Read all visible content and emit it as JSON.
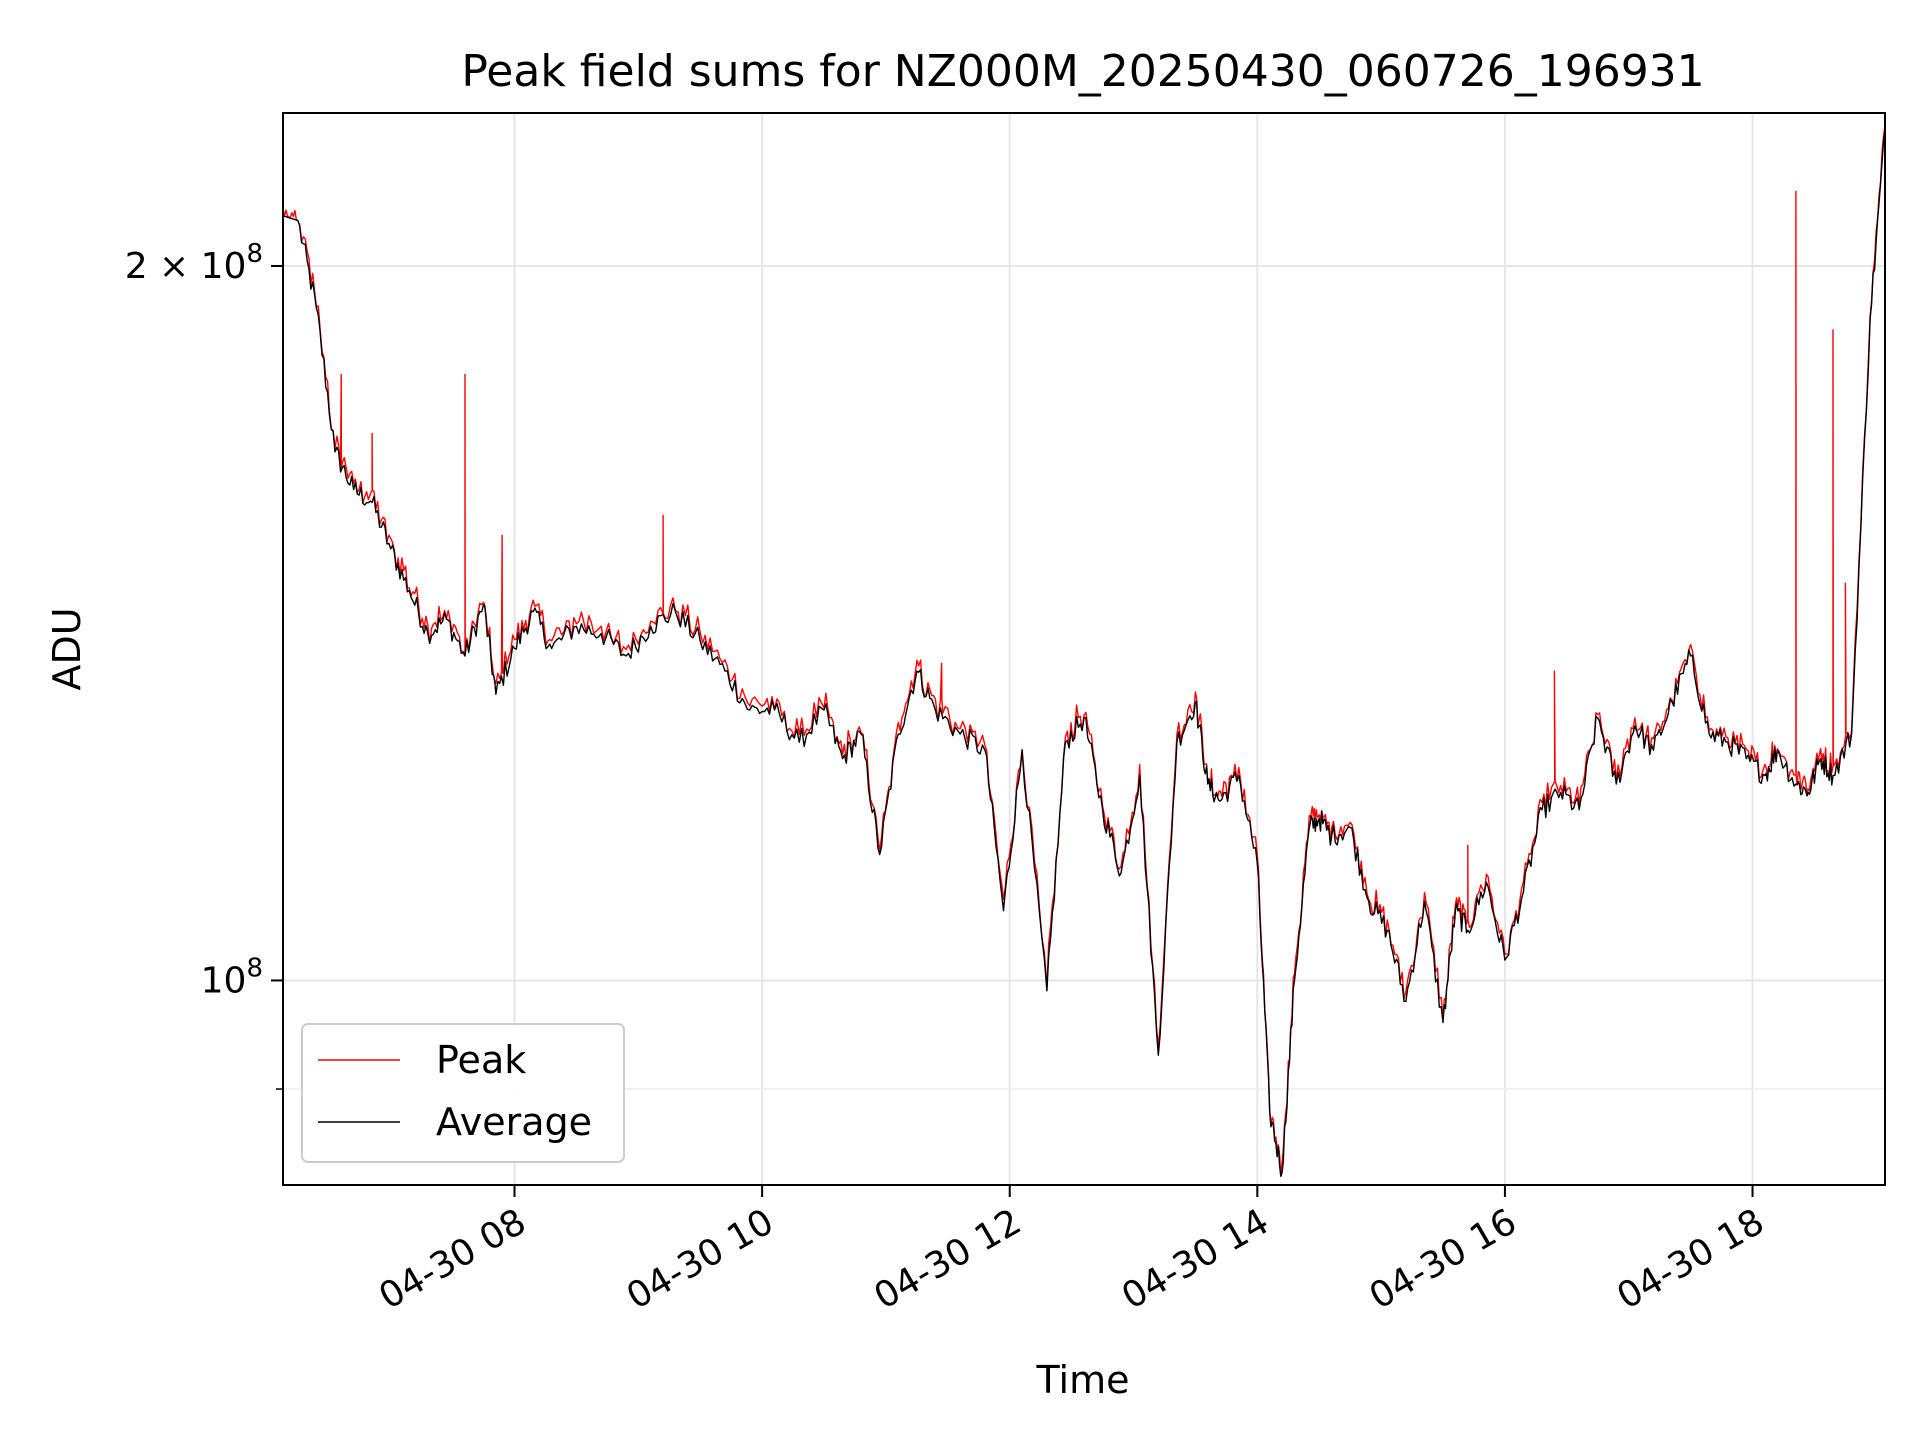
{
  "chart_data": {
    "type": "line",
    "title": "Peak field sums for NZ000M_20250430_060726_196931",
    "xlabel": "Time",
    "ylabel": "ADU",
    "yscale": "log",
    "x_unit": "hours (2025-04-30)",
    "xlim": [
      6.13,
      19.07
    ],
    "ylim": [
      82000000,
      232000000
    ],
    "x_ticks": [
      {
        "value": 8,
        "label": "04-30 08"
      },
      {
        "value": 10,
        "label": "04-30 10"
      },
      {
        "value": 12,
        "label": "04-30 12"
      },
      {
        "value": 14,
        "label": "04-30 14"
      },
      {
        "value": 16,
        "label": "04-30 16"
      },
      {
        "value": 18,
        "label": "04-30 18"
      }
    ],
    "y_ticks": [
      {
        "value": 100000000,
        "label_base": "10",
        "label_exp": "8"
      },
      {
        "value": 200000000,
        "label_base": "2 × 10",
        "label_exp": "8"
      }
    ],
    "y_minor_ticks": [
      90000000
    ],
    "grid": true,
    "legend_position": "lower-left",
    "series": [
      {
        "name": "Average",
        "color": "#000000",
        "x": [
          6.13,
          6.25,
          6.4,
          6.55,
          6.7,
          6.85,
          7.0,
          7.15,
          7.3,
          7.45,
          7.6,
          7.75,
          7.85,
          8.0,
          8.15,
          8.3,
          8.5,
          8.7,
          8.9,
          9.1,
          9.3,
          9.5,
          9.7,
          9.9,
          10.1,
          10.3,
          10.5,
          10.65,
          10.8,
          10.95,
          11.1,
          11.25,
          11.4,
          11.6,
          11.8,
          11.95,
          12.1,
          12.3,
          12.45,
          12.6,
          12.75,
          12.9,
          13.05,
          13.2,
          13.35,
          13.5,
          13.6,
          13.7,
          13.85,
          14.0,
          14.1,
          14.2,
          14.3,
          14.42,
          14.5,
          14.6,
          14.75,
          14.9,
          15.05,
          15.2,
          15.35,
          15.5,
          15.6,
          15.7,
          15.85,
          16.0,
          16.15,
          16.3,
          16.45,
          16.6,
          16.75,
          16.9,
          17.05,
          17.2,
          17.35,
          17.5,
          17.65,
          17.8,
          17.95,
          18.1,
          18.2,
          18.35,
          18.45,
          18.55,
          18.65,
          18.8,
          18.95,
          19.07
        ],
        "y": [
          210000000,
          209000000,
          192000000,
          167000000,
          161000000,
          159000000,
          152000000,
          146000000,
          140000000,
          142000000,
          137000000,
          144000000,
          132000000,
          138000000,
          143000000,
          138000000,
          141000000,
          140000000,
          137000000,
          141000000,
          143000000,
          139000000,
          135000000,
          130000000,
          130000000,
          126000000,
          130000000,
          124000000,
          127000000,
          113000000,
          127000000,
          135000000,
          130000000,
          127000000,
          125000000,
          107000000,
          125000000,
          99000000,
          126000000,
          129000000,
          118000000,
          111000000,
          122000000,
          93000000,
          126000000,
          131000000,
          121000000,
          119000000,
          122000000,
          112000000,
          88000000,
          83000000,
          100000000,
          116000000,
          117000000,
          115000000,
          116000000,
          108000000,
          105000000,
          98000000,
          108000000,
          96000000,
          107000000,
          105000000,
          110000000,
          102000000,
          109000000,
          118000000,
          120000000,
          118000000,
          129000000,
          121000000,
          128000000,
          125000000,
          131000000,
          137000000,
          127000000,
          126000000,
          124000000,
          122000000,
          125000000,
          121000000,
          120000000,
          124000000,
          122000000,
          127000000,
          190000000,
          228000000
        ]
      },
      {
        "name": "Peak",
        "color": "#ff0000",
        "spikes": [
          {
            "x": 6.6,
            "y": 180000000
          },
          {
            "x": 6.85,
            "y": 170000000
          },
          {
            "x": 7.6,
            "y": 180000000
          },
          {
            "x": 7.9,
            "y": 154000000
          },
          {
            "x": 9.2,
            "y": 157000000
          },
          {
            "x": 11.45,
            "y": 136000000
          },
          {
            "x": 15.7,
            "y": 114000000
          },
          {
            "x": 16.4,
            "y": 135000000
          },
          {
            "x": 18.35,
            "y": 215000000
          },
          {
            "x": 18.65,
            "y": 188000000
          },
          {
            "x": 18.75,
            "y": 147000000
          }
        ]
      }
    ]
  }
}
